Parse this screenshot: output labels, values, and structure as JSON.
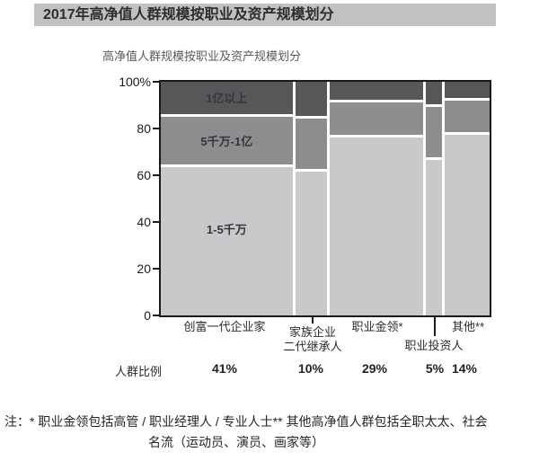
{
  "header": {
    "title": "2017年高净值人群规模按职业及资产规模划分"
  },
  "chart": {
    "subtitle": "高净值人群规模按职业及资产规模划分"
  },
  "chart_data": {
    "type": "bar",
    "variant": "marimekko-100pct-stacked",
    "title": "高净值人群规模按职业及资产规模划分",
    "categories": [
      "创富一代企业家",
      "家族企业二代继承人",
      "职业金领*",
      "职业投资人",
      "其他**"
    ],
    "column_widths_pct": [
      41,
      10,
      29,
      5,
      14
    ],
    "series": [
      {
        "name": "1亿以上",
        "color": "#57575a",
        "values": [
          14,
          15,
          8,
          10,
          7
        ]
      },
      {
        "name": "5千万-1亿",
        "color": "#8d8d8f",
        "values": [
          21,
          22,
          14,
          22,
          14
        ]
      },
      {
        "name": "1-5千万",
        "color": "#c9c9cb",
        "values": [
          65,
          63,
          78,
          68,
          79
        ]
      }
    ],
    "ylim": [
      0,
      100
    ],
    "y_ticks": [
      "100%",
      "80",
      "60",
      "40",
      "20",
      "0"
    ],
    "grid": false,
    "legend": "labels-inside-first-column",
    "xaxis_labels": [
      {
        "lines": [
          "创富一代企业家"
        ]
      },
      {
        "lines": [
          "家族企业",
          "二代继承人"
        ]
      },
      {
        "lines": [
          "职业金领*"
        ]
      },
      {
        "lines": [
          "职业投资人"
        ]
      },
      {
        "lines": [
          "其他**"
        ]
      }
    ],
    "ratio_row": {
      "label": "人群比例",
      "values": [
        "41%",
        "10%",
        "29%",
        "5%",
        "14%"
      ]
    }
  },
  "notes": {
    "line1": "注：* 职业金领包括高管 / 职业经理人 / 专业人士** 其他高净值人群包括全职太太、社会",
    "line2": "名流（运动员、演员、画家等）"
  },
  "colors": {
    "titlebar_bg": "#c1c1c1",
    "axis": "#1a1a1a"
  }
}
